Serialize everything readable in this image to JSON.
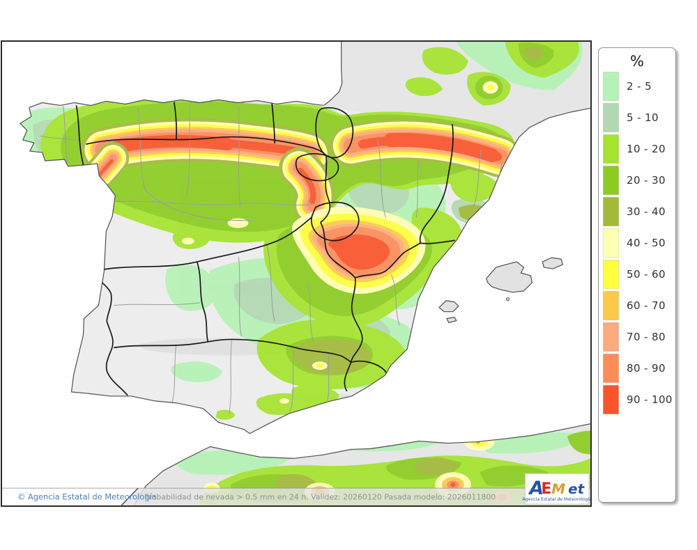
{
  "legend": {
    "title": "%",
    "entries": [
      {
        "label": "2 - 5",
        "color": "#b5f2b5"
      },
      {
        "label": "5 - 10",
        "color": "#b2d8b2"
      },
      {
        "label": "10 - 20",
        "color": "#a4e32e"
      },
      {
        "label": "20 - 30",
        "color": "#8ccc22"
      },
      {
        "label": "30 - 40",
        "color": "#a2b93a"
      },
      {
        "label": "40 - 50",
        "color": "#ffffb2"
      },
      {
        "label": "50 - 60",
        "color": "#ffff3d"
      },
      {
        "label": "60 - 70",
        "color": "#fec84a"
      },
      {
        "label": "70 - 80",
        "color": "#fcaa7e"
      },
      {
        "label": "80 - 90",
        "color": "#fc8d59"
      },
      {
        "label": "90 - 100",
        "color": "#f9542b"
      }
    ]
  },
  "footer": {
    "attribution": "© Agencia Estatal de Meteorología",
    "product_text": "Probabilidad de nevada > 0.5 mm en 24 h. Validez: 20260120 Pasada modelo: 2026011800"
  },
  "logo": {
    "letters": [
      {
        "char": "A",
        "color": "#2553a8"
      },
      {
        "char": "E",
        "color": "#d22b1f"
      },
      {
        "char": "M",
        "color": "#e09a2c"
      },
      {
        "char": "et",
        "color": "#2553a8"
      }
    ],
    "caption": "Agencia Estatal de Meteorología"
  },
  "map": {
    "sea_color": "#ffffff",
    "land_color": "#e9e9e9",
    "outside_land_color": "#e6e6e6"
  }
}
